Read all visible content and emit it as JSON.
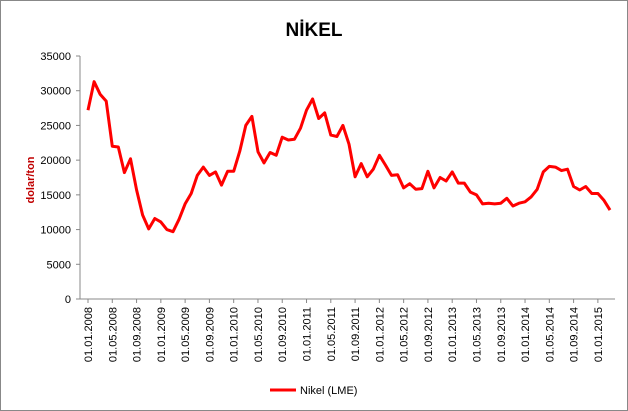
{
  "chart_data": {
    "type": "line",
    "title": "NİKEL",
    "ylabel": "dolar/ton",
    "categories": [
      "01.01.2008",
      null,
      null,
      null,
      "01.05.2008",
      null,
      null,
      null,
      "01.09.2008",
      null,
      null,
      null,
      "01.01.2009",
      null,
      null,
      null,
      "01.05.2009",
      null,
      null,
      null,
      "01.09.2009",
      null,
      null,
      null,
      "01.01.2010",
      null,
      null,
      null,
      "01.05.2010",
      null,
      null,
      null,
      "01.09.2010",
      null,
      null,
      null,
      "01.01.2011",
      null,
      null,
      null,
      "01.05.2011",
      null,
      null,
      null,
      "01.09.2011",
      null,
      null,
      null,
      "01.01.2012",
      null,
      null,
      null,
      "01.05.2012",
      null,
      null,
      null,
      "01.09.2012",
      null,
      null,
      null,
      "01.01.2013",
      null,
      null,
      null,
      "01.05.2013",
      null,
      null,
      null,
      "01.09.2013",
      null,
      null,
      null,
      "01.01.2014",
      null,
      null,
      null,
      "01.05.2014",
      null,
      null,
      null,
      "01.09.2014",
      null,
      null,
      null,
      "01.01.2015",
      null,
      null
    ],
    "series": [
      {
        "name": "Nikel (LME)",
        "color": "#ff0000",
        "values": [
          27200,
          31300,
          29500,
          28500,
          22000,
          21900,
          18200,
          20200,
          15700,
          12100,
          10100,
          11600,
          11100,
          10000,
          9700,
          11500,
          13700,
          15200,
          17800,
          19000,
          17800,
          18300,
          16400,
          18400,
          18400,
          21300,
          25000,
          26300,
          21200,
          19600,
          21100,
          20700,
          23300,
          22900,
          23000,
          24600,
          27200,
          28800,
          26000,
          26800,
          23600,
          23400,
          25000,
          22300,
          17600,
          19500,
          17600,
          18700,
          20700,
          19300,
          17800,
          17900,
          16000,
          16600,
          15800,
          15900,
          18400,
          16000,
          17500,
          17000,
          18300,
          16700,
          16700,
          15400,
          15000,
          13700,
          13800,
          13700,
          13800,
          14500,
          13400,
          13800,
          14000,
          14700,
          15800,
          18300,
          19100,
          19000,
          18500,
          18700,
          16200,
          15700,
          16200,
          15200,
          15200,
          14200,
          12800
        ]
      }
    ],
    "ylim": [
      0,
      35000
    ],
    "yticks": [
      0,
      5000,
      10000,
      15000,
      20000,
      25000,
      30000,
      35000
    ],
    "grid": false,
    "legend": "bottom"
  }
}
